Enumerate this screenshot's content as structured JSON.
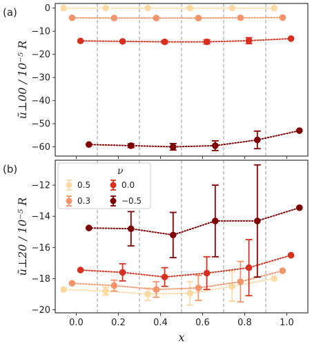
{
  "chart_data": [
    {
      "type": "scatter",
      "panel_label": "(a)",
      "ylabel_main": "ũ⊥00 / 10⁻⁵ R",
      "ylim": [
        -64,
        2
      ],
      "xlim": [
        -0.1,
        1.1
      ],
      "yticks": [
        0,
        -10,
        -20,
        -30,
        -40,
        -50,
        -60
      ],
      "ytick_labels": [
        "0",
        "−10",
        "−20",
        "−30",
        "−40",
        "−50",
        "−60"
      ],
      "vlines": [
        0.1,
        0.3,
        0.5,
        0.7,
        0.9
      ],
      "series": [
        {
          "nu": 0.5,
          "color": "#fdd9a4",
          "x": [
            -0.06,
            0.14,
            0.34,
            0.54,
            0.74,
            0.94
          ],
          "y": [
            0,
            0,
            0,
            0,
            0,
            0
          ],
          "err": [
            0,
            0,
            0,
            0,
            0,
            0
          ]
        },
        {
          "nu": 0.3,
          "color": "#f5936b",
          "x": [
            -0.02,
            0.18,
            0.38,
            0.58,
            0.78,
            0.98
          ],
          "y": [
            -4.2,
            -4.3,
            -4.3,
            -4.3,
            -4.2,
            -4.1
          ],
          "err": [
            0,
            0,
            0,
            0,
            0,
            0
          ]
        },
        {
          "nu": 0.0,
          "color": "#d7301f",
          "x": [
            0.02,
            0.22,
            0.42,
            0.62,
            0.82,
            1.02
          ],
          "y": [
            -14.2,
            -14.4,
            -14.6,
            -14.6,
            -14.1,
            -13.2
          ],
          "err": [
            0,
            0,
            0.6,
            0.9,
            1.3,
            0
          ]
        },
        {
          "nu": -0.5,
          "color": "#7f0000",
          "x": [
            0.06,
            0.26,
            0.46,
            0.66,
            0.86,
            1.06
          ],
          "y": [
            -59.0,
            -59.5,
            -60.0,
            -59.5,
            -57.0,
            -53.0
          ],
          "err": [
            0,
            0.8,
            1.4,
            2.1,
            3.8,
            0
          ]
        }
      ]
    },
    {
      "type": "scatter",
      "panel_label": "(b)",
      "ylabel_main": "ũ⊥20 / 10⁻⁵ R",
      "xlabel": "x",
      "ylim": [
        -20.2,
        -10.4
      ],
      "xlim": [
        -0.1,
        1.1
      ],
      "yticks": [
        -12,
        -14,
        -16,
        -18,
        -20
      ],
      "ytick_labels": [
        "−12",
        "−14",
        "−16",
        "−18",
        "−20"
      ],
      "xticks": [
        0.0,
        0.2,
        0.4,
        0.6,
        0.8,
        1.0
      ],
      "xtick_labels": [
        "0.0",
        "0.2",
        "0.4",
        "0.6",
        "0.8",
        "1.0"
      ],
      "vlines": [
        0.1,
        0.3,
        0.5,
        0.7,
        0.9
      ],
      "legend": {
        "title": "ν",
        "entries": [
          "0.5",
          "0.0",
          "0.3",
          "−0.5"
        ],
        "placement": "top-left"
      },
      "series": [
        {
          "nu": 0.5,
          "color": "#fdd9a4",
          "x": [
            -0.06,
            0.14,
            0.34,
            0.54,
            0.74,
            0.94
          ],
          "y": [
            -18.7,
            -18.8,
            -19.0,
            -18.95,
            -18.5,
            -18.0
          ],
          "err": [
            0,
            0.25,
            0.4,
            0.75,
            0.95,
            0
          ]
        },
        {
          "nu": 0.3,
          "color": "#f5936b",
          "x": [
            -0.02,
            0.18,
            0.38,
            0.58,
            0.78,
            0.98
          ],
          "y": [
            -18.3,
            -18.45,
            -18.7,
            -18.6,
            -18.2,
            -17.5
          ],
          "err": [
            0,
            0.35,
            0.5,
            0.8,
            1.3,
            0
          ]
        },
        {
          "nu": 0.0,
          "color": "#d7301f",
          "x": [
            0.02,
            0.22,
            0.42,
            0.62,
            0.82,
            1.02
          ],
          "y": [
            -17.45,
            -17.6,
            -17.9,
            -17.65,
            -17.3,
            -16.5
          ],
          "err": [
            0,
            0.55,
            0.6,
            1.05,
            1.8,
            0
          ]
        },
        {
          "nu": -0.5,
          "color": "#7f0000",
          "x": [
            0.06,
            0.26,
            0.46,
            0.66,
            0.86,
            1.06
          ],
          "y": [
            -14.75,
            -14.8,
            -15.2,
            -14.3,
            -14.3,
            -13.45
          ],
          "err": [
            0,
            1.1,
            1.45,
            2.3,
            3.6,
            0
          ]
        }
      ]
    }
  ]
}
